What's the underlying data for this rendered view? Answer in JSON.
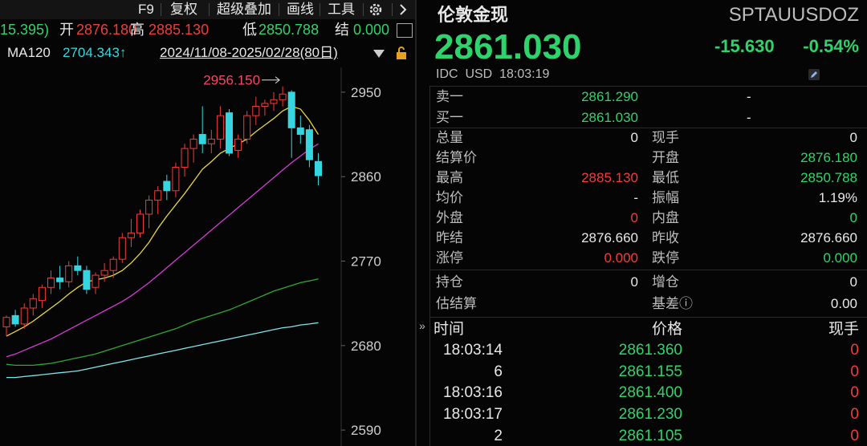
{
  "toolbar": {
    "items": [
      "F9",
      "复权",
      "超级叠加",
      "画线",
      "工具"
    ]
  },
  "quote_bar": {
    "prev_fragment": "15.395)",
    "open_label": "开",
    "open": "2876.180",
    "high_label": "高",
    "high": "2885.130",
    "low_label": "低",
    "low": "2850.788",
    "settle_label": "结",
    "settle": "0.000"
  },
  "indicator_bar": {
    "ma_label": "MA120",
    "ma_value": "2704.343↑",
    "range": "2024/11/08-2025/02/28(80日)"
  },
  "chart": {
    "ylim": [
      2573,
      2973
    ],
    "yticks": [
      2590,
      2680,
      2770,
      2860,
      2950
    ],
    "high_label": "2956.150",
    "up_color": "#f23b3b",
    "down_color": "#36d6e0",
    "open": [
      2700,
      2712,
      2703,
      2720,
      2728,
      2742,
      2752,
      2748,
      2765,
      2760,
      2742,
      2755,
      2760,
      2772,
      2795,
      2800,
      2820,
      2835,
      2855,
      2845,
      2870,
      2890,
      2905,
      2895,
      2900,
      2928,
      2888,
      2900,
      2925,
      2935,
      2938,
      2942,
      2950,
      2912,
      2910,
      2876.18
    ],
    "high": [
      2712,
      2718,
      2725,
      2735,
      2745,
      2760,
      2765,
      2770,
      2775,
      2765,
      2758,
      2768,
      2775,
      2800,
      2815,
      2825,
      2840,
      2850,
      2862,
      2875,
      2895,
      2905,
      2935,
      2910,
      2935,
      2932,
      2905,
      2930,
      2945,
      2942,
      2950,
      2956.15,
      2952,
      2925,
      2915,
      2885.13
    ],
    "low": [
      2690,
      2700,
      2698,
      2712,
      2720,
      2735,
      2740,
      2742,
      2755,
      2735,
      2735,
      2748,
      2752,
      2768,
      2785,
      2795,
      2805,
      2820,
      2835,
      2838,
      2860,
      2875,
      2885,
      2885,
      2890,
      2882,
      2880,
      2895,
      2915,
      2925,
      2930,
      2935,
      2880,
      2895,
      2870,
      2850.788
    ],
    "close": [
      2710,
      2703,
      2720,
      2730,
      2742,
      2752,
      2748,
      2765,
      2760,
      2740,
      2755,
      2760,
      2772,
      2795,
      2800,
      2820,
      2835,
      2845,
      2845,
      2870,
      2890,
      2900,
      2895,
      2900,
      2925,
      2885,
      2900,
      2925,
      2935,
      2938,
      2942,
      2948,
      2912,
      2905,
      2878,
      2861.03
    ],
    "ma_lines": [
      {
        "color": "#e8d83a",
        "values": [
          2690,
          2695,
          2700,
          2706,
          2713,
          2720,
          2727,
          2735,
          2742,
          2748,
          2750,
          2752,
          2755,
          2760,
          2768,
          2778,
          2790,
          2805,
          2818,
          2830,
          2842,
          2855,
          2868,
          2876,
          2885,
          2890,
          2895,
          2900,
          2908,
          2915,
          2922,
          2930,
          2935,
          2932,
          2920,
          2905
        ]
      },
      {
        "color": "#d63ad6",
        "values": [
          2668,
          2671,
          2675,
          2679,
          2683,
          2687,
          2692,
          2697,
          2702,
          2707,
          2712,
          2717,
          2722,
          2727,
          2733,
          2740,
          2747,
          2755,
          2763,
          2771,
          2779,
          2787,
          2795,
          2803,
          2811,
          2819,
          2827,
          2835,
          2843,
          2851,
          2859,
          2867,
          2875,
          2882,
          2889,
          2895
        ]
      },
      {
        "color": "#2fa832",
        "values": [
          2660,
          2659,
          2659,
          2659,
          2660,
          2661,
          2663,
          2665,
          2667,
          2669,
          2671,
          2674,
          2677,
          2680,
          2683,
          2686,
          2689,
          2692,
          2695,
          2698,
          2702,
          2706,
          2709,
          2712,
          2715,
          2718,
          2722,
          2726,
          2730,
          2734,
          2738,
          2741,
          2744,
          2747,
          2749,
          2751
        ]
      },
      {
        "color": "#7fe6ee",
        "values": [
          2646,
          2646,
          2647,
          2648,
          2649,
          2650,
          2651,
          2652,
          2653,
          2655,
          2657,
          2659,
          2661,
          2663,
          2665,
          2667,
          2669,
          2671,
          2673,
          2675,
          2677,
          2679,
          2681,
          2683,
          2685,
          2687,
          2689,
          2691,
          2693,
          2695,
          2697,
          2699,
          2700,
          2702,
          2703,
          2704.343
        ]
      }
    ]
  },
  "header": {
    "name": "伦敦金现",
    "code": "SPTAUUSDOZ",
    "price": "2861.030",
    "change": "-15.630",
    "change_pct": "-0.54%",
    "source": "IDC  USD  18:03:19"
  },
  "order_book": [
    {
      "label": "卖一",
      "price": "2861.290",
      "volume": "-"
    },
    {
      "label": "买一",
      "price": "2861.030",
      "volume": "-"
    }
  ],
  "stats": [
    [
      {
        "label": "总量",
        "value": "0"
      },
      {
        "label": "现手",
        "value": "0"
      }
    ],
    [
      {
        "label": "结算价"
      },
      {
        "label": "开盘",
        "value": "2876.180"
      }
    ],
    [
      {
        "label": "最高",
        "value": "2885.130"
      },
      {
        "label": "最低",
        "value": "2850.788"
      }
    ],
    [
      {
        "label": "均价",
        "value": "-"
      },
      {
        "label": "振幅",
        "value": "1.19%"
      }
    ],
    [
      {
        "label": "外盘",
        "value": "0"
      },
      {
        "label": "内盘",
        "value": "0"
      }
    ],
    [
      {
        "label": "昨结",
        "value": "2876.660"
      },
      {
        "label": "昨收",
        "value": "2876.660"
      }
    ],
    [
      {
        "label": "涨停",
        "value": "0.000"
      },
      {
        "label": "跌停",
        "value": "0.000"
      }
    ],
    [
      {
        "label": "持仓",
        "value": "0"
      },
      {
        "label": "增仓",
        "value": "0"
      }
    ],
    [
      {
        "label": "估结算"
      },
      {
        "label": "基差ⓘ",
        "value": "0.00"
      }
    ]
  ],
  "trades": {
    "headers": [
      "时间",
      "价格",
      "现手"
    ],
    "rows": [
      [
        "18:03:14",
        "2861.360",
        "0"
      ],
      [
        "6",
        "2861.155",
        "0"
      ],
      [
        "18:03:16",
        "2861.400",
        "0"
      ],
      [
        "18:03:17",
        "2861.230",
        "0"
      ],
      [
        "2",
        "2861.105",
        "0"
      ]
    ]
  }
}
